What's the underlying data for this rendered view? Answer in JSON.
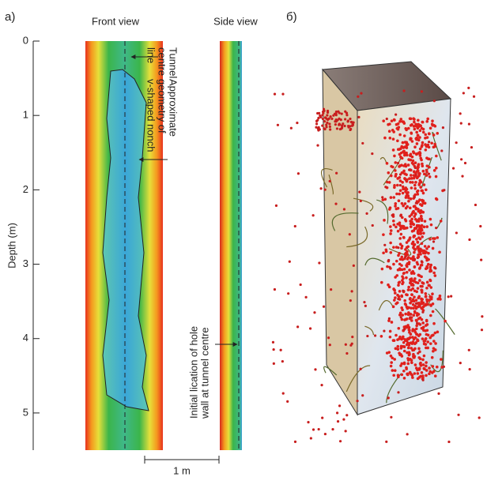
{
  "panel_a": {
    "label": "a)",
    "front_view": "Front view",
    "side_view": "Side view",
    "y_axis": {
      "label": "Depth (m)",
      "range": [
        0,
        5.5
      ],
      "ticks": [
        0,
        1,
        2,
        3,
        4,
        5
      ]
    },
    "annotations": [
      [
        "Tunnel",
        "centre",
        "line"
      ],
      [
        "Approximate",
        "geometry of",
        "v-shaped nonch"
      ],
      [
        "Initial lication of hole",
        "wall at tunnel centre"
      ]
    ],
    "scale_bar": "1 m"
  },
  "panel_b": {
    "label": "б)"
  }
}
